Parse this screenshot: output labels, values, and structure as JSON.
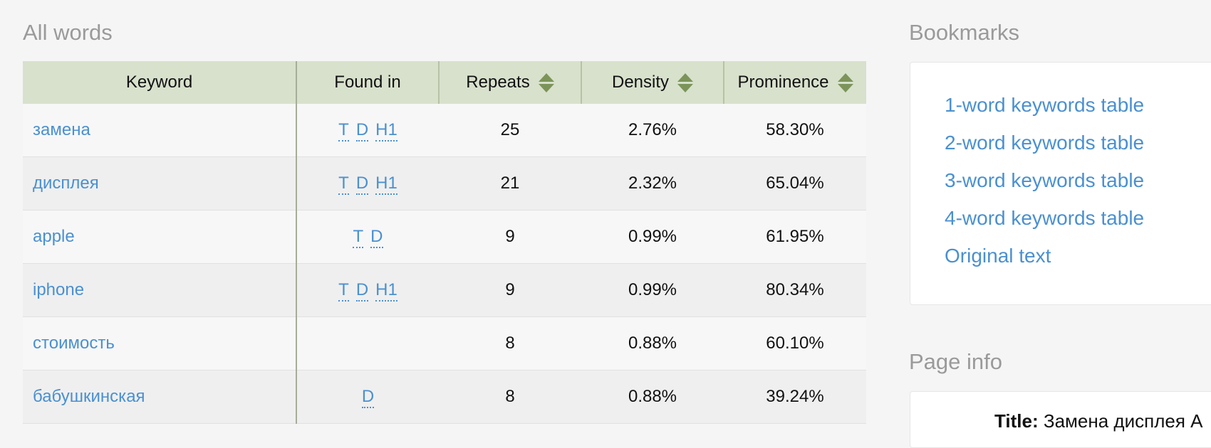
{
  "all_words": {
    "title": "All words",
    "columns": {
      "keyword": "Keyword",
      "found_in": "Found in",
      "repeats": "Repeats",
      "density": "Density",
      "prominence": "Prominence"
    },
    "rows": [
      {
        "keyword": "замена",
        "tags": [
          "T",
          "D",
          "H1"
        ],
        "repeats": "25",
        "density": "2.76%",
        "prominence": "58.30%"
      },
      {
        "keyword": "дисплея",
        "tags": [
          "T",
          "D",
          "H1"
        ],
        "repeats": "21",
        "density": "2.32%",
        "prominence": "65.04%"
      },
      {
        "keyword": "apple",
        "tags": [
          "T",
          "D"
        ],
        "repeats": "9",
        "density": "0.99%",
        "prominence": "61.95%"
      },
      {
        "keyword": "iphone",
        "tags": [
          "T",
          "D",
          "H1"
        ],
        "repeats": "9",
        "density": "0.99%",
        "prominence": "80.34%"
      },
      {
        "keyword": "стоимость",
        "tags": [],
        "repeats": "8",
        "density": "0.88%",
        "prominence": "60.10%"
      },
      {
        "keyword": "бабушкинская",
        "tags": [
          "D"
        ],
        "repeats": "8",
        "density": "0.88%",
        "prominence": "39.24%"
      }
    ],
    "sort_icon": "sort-updown-icon",
    "colors": {
      "header_bg": "#d8e1cc",
      "link": "#4a90d0",
      "sort_arrow": "#7c9459"
    }
  },
  "bookmarks": {
    "title": "Bookmarks",
    "links": [
      "1-word keywords table",
      "2-word keywords table",
      "3-word keywords table",
      "4-word keywords table",
      "Original text"
    ]
  },
  "page_info": {
    "title": "Page info",
    "title_label": "Title:",
    "title_value": "Замена дисплея А"
  }
}
